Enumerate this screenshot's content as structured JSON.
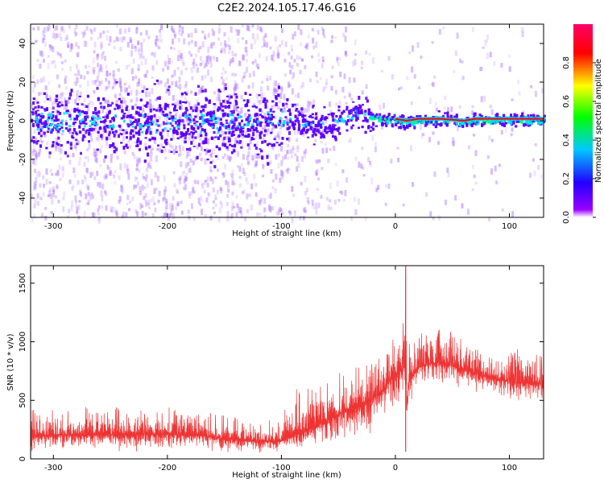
{
  "title": "C2E2.2024.105.17.46.G16",
  "chart_data": [
    {
      "type": "heatmap",
      "xlabel": "Height of straight line (km)",
      "ylabel": "Frequency (Hz)",
      "xlim": [
        -320,
        130
      ],
      "ylim": [
        -50,
        50
      ],
      "xticks": [
        -300,
        -200,
        -100,
        0,
        100
      ],
      "yticks": [
        -40,
        -20,
        0,
        20,
        40
      ],
      "colorbar": {
        "label": "Normalized spectral amplitude",
        "range": [
          0,
          1
        ],
        "ticks": [
          "0.0",
          "0.2",
          "0.4",
          "0.6",
          "0.8"
        ],
        "colormap": [
          "#ffffff",
          "#8a00ff",
          "#2200ff",
          "#00e5ff",
          "#00ff00",
          "#ffff00",
          "#ff0000",
          "#ff0066"
        ]
      },
      "colors": {
        "noise": "#a96bff",
        "core": "#5a00ff",
        "tone": "#ff0000",
        "halo": "#00e0ff"
      },
      "ridge": {
        "x": [
          -320,
          -100,
          -90,
          -80,
          -70,
          -60,
          -50,
          -40,
          -35,
          -30,
          -20,
          -10,
          0,
          10,
          20,
          40,
          60,
          70,
          80,
          100,
          130
        ],
        "freq": [
          0,
          0,
          1,
          -1,
          -2,
          -1,
          1,
          3,
          5,
          4,
          2,
          1,
          1,
          0,
          1,
          1,
          0,
          1,
          1,
          1,
          1
        ]
      }
    },
    {
      "type": "line",
      "xlabel": "Height of straight line (km)",
      "ylabel": "SNR (10 * v/v)",
      "xlim": [
        -320,
        130
      ],
      "ylim": [
        0,
        1650
      ],
      "xticks": [
        -300,
        -200,
        -100,
        0,
        100
      ],
      "yticks": [
        0,
        500,
        1000,
        1500
      ],
      "color": "#ee3333",
      "envelope": {
        "x": [
          -320,
          -250,
          -200,
          -170,
          -150,
          -120,
          -100,
          -90,
          -80,
          -60,
          -40,
          -30,
          -20,
          -10,
          0,
          5,
          8,
          9,
          10,
          12,
          20,
          30,
          40,
          60,
          80,
          100,
          130
        ],
        "mean": [
          200,
          205,
          210,
          200,
          170,
          150,
          150,
          200,
          230,
          330,
          430,
          470,
          520,
          600,
          720,
          760,
          780,
          800,
          420,
          680,
          780,
          810,
          820,
          760,
          700,
          660,
          640
        ],
        "min": [
          60,
          60,
          60,
          60,
          50,
          40,
          40,
          60,
          80,
          120,
          150,
          180,
          220,
          300,
          420,
          480,
          500,
          520,
          60,
          450,
          560,
          600,
          620,
          580,
          520,
          480,
          460
        ],
        "max": [
          440,
          450,
          450,
          420,
          370,
          340,
          340,
          600,
          620,
          700,
          760,
          800,
          870,
          950,
          1050,
          1150,
          1300,
          1650,
          900,
          1050,
          1080,
          1110,
          1120,
          1060,
          980,
          940,
          930
        ]
      }
    }
  ]
}
